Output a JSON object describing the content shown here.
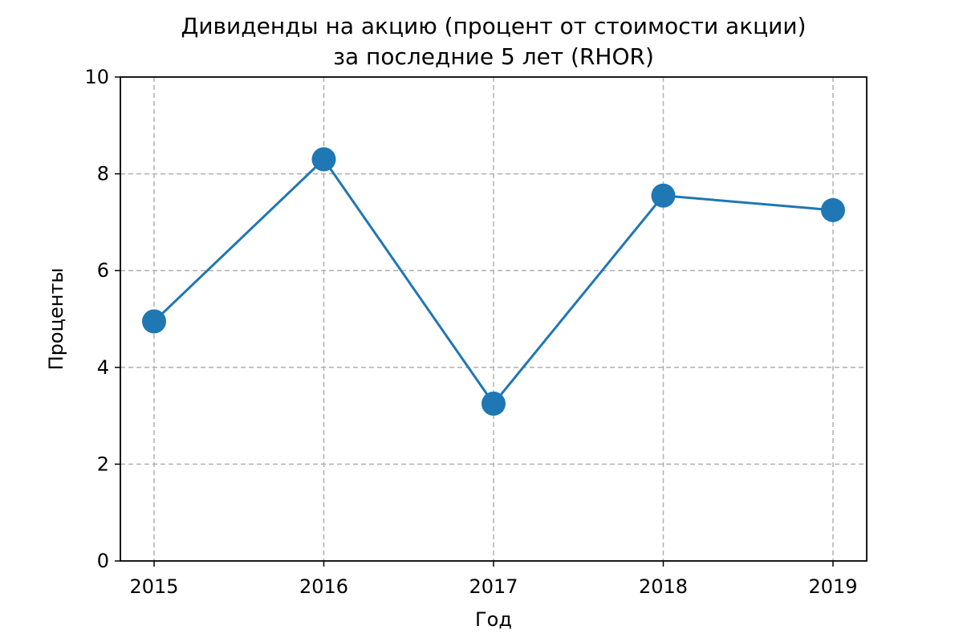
{
  "chart_data": {
    "type": "line",
    "title_line1": "Дивиденды на акцию (процент от стоимости акции)",
    "title_line2": "за последние 5 лет (RHOR)",
    "xlabel": "Год",
    "ylabel": "Проценты",
    "categories": [
      "2015",
      "2016",
      "2017",
      "2018",
      "2019"
    ],
    "series": [
      {
        "name": "RHOR",
        "values": [
          4.95,
          8.3,
          3.25,
          7.55,
          7.25
        ],
        "color": "#1f77b4",
        "marker": "circle"
      }
    ],
    "ylim": [
      0,
      10
    ],
    "yticks": [
      0,
      2,
      4,
      6,
      8,
      10
    ],
    "grid": true,
    "grid_style": "dashed"
  }
}
